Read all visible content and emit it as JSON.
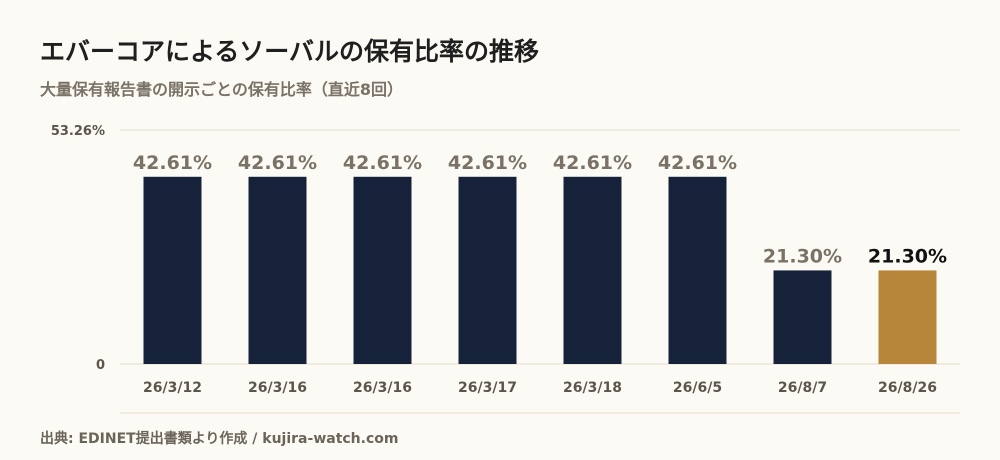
{
  "title": "エバーコアによるソーバルの保有比率の推移",
  "subtitle": "大量保有報告書の開示ごとの保有比率（直近8回）",
  "footer": "出典: EDINET提出書類より作成 / kujira-watch.com",
  "chart_data": {
    "type": "bar",
    "categories": [
      "26/3/12",
      "26/3/16",
      "26/3/16",
      "26/3/17",
      "26/3/18",
      "26/6/5",
      "26/8/7",
      "26/8/26"
    ],
    "values": [
      42.61,
      42.61,
      42.61,
      42.61,
      42.61,
      42.61,
      21.3,
      21.3
    ],
    "value_labels": [
      "42.61%",
      "42.61%",
      "42.61%",
      "42.61%",
      "42.61%",
      "42.61%",
      "21.30%",
      "21.30%"
    ],
    "highlight_index": 7,
    "ylim": [
      0,
      53.26
    ],
    "ytick_labels": [
      "0",
      "53.26%"
    ],
    "grid": true,
    "colors": {
      "bar": "#16213a",
      "highlight": "#b8863b",
      "label": "#7a7266",
      "highlight_label": "#111111",
      "grid": "#e4dcc9",
      "axis_text": "#5c554b"
    }
  }
}
